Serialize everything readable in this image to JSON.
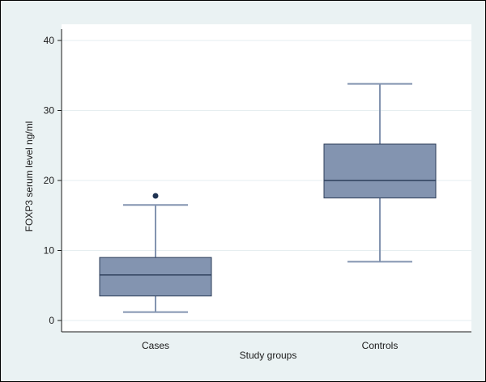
{
  "chart_data": {
    "type": "box",
    "title": "",
    "xlabel": "Study groups",
    "ylabel": "FOXP3 serum level ng/ml",
    "ylim": [
      0,
      40
    ],
    "yticks": [
      "0",
      "10",
      "20",
      "30",
      "40"
    ],
    "grid": true,
    "categories": [
      "Cases",
      "Controls"
    ],
    "boxes": [
      {
        "category": "Cases",
        "min": 1.2,
        "q1": 3.5,
        "median": 6.5,
        "q3": 9.0,
        "max": 16.5,
        "outliers": [
          17.8
        ]
      },
      {
        "category": "Controls",
        "min": 8.4,
        "q1": 17.5,
        "median": 20.0,
        "q3": 25.2,
        "max": 33.8,
        "outliers": []
      }
    ],
    "colors": {
      "box_fill": "#8394b0",
      "box_stroke": "#2d3e5a",
      "plot_background": "#ffffff",
      "outer_background": "#eaf2f3",
      "grid": "#e6eef0"
    }
  }
}
